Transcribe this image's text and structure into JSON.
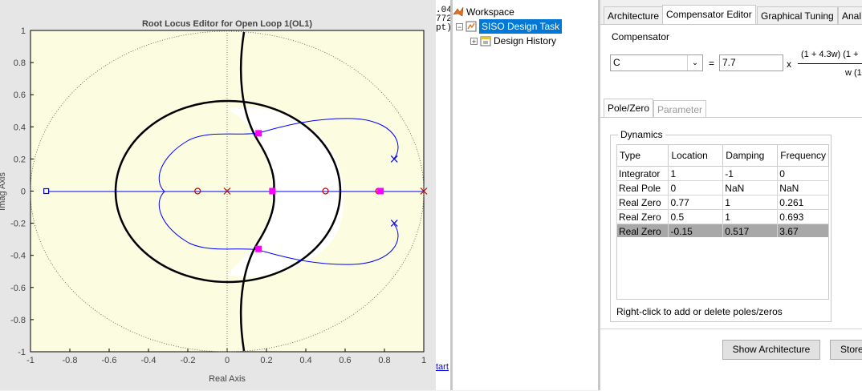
{
  "plot": {
    "title": "Root Locus Editor for Open Loop 1(OL1)",
    "xlabel": "Real Axis",
    "ylabel": "Imag Axis",
    "xticks": [
      "-1",
      "-0.8",
      "-0.6",
      "-0.4",
      "-0.2",
      "0",
      "0.2",
      "0.4",
      "0.6",
      "0.8",
      "1"
    ],
    "yticks": [
      "1",
      "0.8",
      "0.6",
      "0.4",
      "0.2",
      "0",
      "-0.2",
      "-0.4",
      "-0.6",
      "-0.8",
      "-1"
    ]
  },
  "chart_data": {
    "type": "scatter",
    "title": "Root Locus Editor for Open Loop 1(OL1)",
    "xlabel": "Real Axis",
    "ylabel": "Imag Axis",
    "xlim": [
      -1,
      1
    ],
    "ylim": [
      -1,
      1
    ],
    "open_loop_poles": [
      [
        0,
        0
      ],
      [
        1,
        0
      ],
      [
        0.85,
        0.2
      ],
      [
        0.85,
        -0.2
      ]
    ],
    "open_loop_zeros": [
      [
        -0.15,
        0
      ],
      [
        0.5,
        0
      ],
      [
        0.77,
        0
      ]
    ],
    "integrator_zero": [
      -0.92,
      0
    ],
    "closed_loop_poles": [
      [
        0.16,
        0.36
      ],
      [
        0.16,
        -0.36
      ],
      [
        0.23,
        0
      ],
      [
        0.78,
        0
      ]
    ],
    "unit_circle": true,
    "colors": {
      "locus": "#0000ff",
      "poles": "#cc0000",
      "closed_loop": "#ff00ff",
      "damping": "#000000",
      "bg": "#fcfce0"
    }
  },
  "cmd": {
    "lines": [
      ".04",
      "772",
      "pt)"
    ],
    "link": "tart"
  },
  "tree": {
    "root": "Workspace",
    "task": "SISO Design Task",
    "history": "Design History"
  },
  "tabs": [
    "Architecture",
    "Compensator Editor",
    "Graphical Tuning",
    "Anal"
  ],
  "compensator": {
    "group_label": "Compensator",
    "name": "C",
    "equals": "=",
    "gain": "7.7",
    "times": "x",
    "numerator": "(1 + 4.3w) (1 +",
    "denominator": "w (1"
  },
  "subtabs": [
    "Pole/Zero",
    "Parameter"
  ],
  "dynamics": {
    "label": "Dynamics",
    "columns": [
      "Type",
      "Location",
      "Damping",
      "Frequency"
    ],
    "rows": [
      [
        "Integrator",
        "1",
        "-1",
        "0"
      ],
      [
        "Real Pole",
        "0",
        "NaN",
        "NaN"
      ],
      [
        "Real Zero",
        "0.77",
        "1",
        "0.261"
      ],
      [
        "Real Zero",
        "0.5",
        "1",
        "0.693"
      ],
      [
        "Real Zero",
        "-0.15",
        "0.517",
        "3.67"
      ]
    ],
    "hint": "Right-click to add or delete poles/zeros"
  },
  "buttons": {
    "show_arch": "Show Architecture",
    "store": "Store"
  }
}
